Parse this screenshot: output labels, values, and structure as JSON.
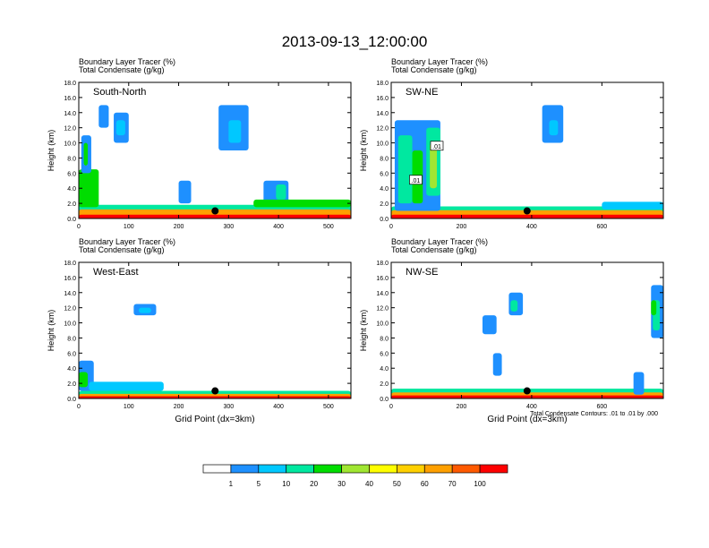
{
  "title": "2013-09-13_12:00:00",
  "footnote": "Total Condensate Contours: .01 to .01 by .000",
  "chart_data": [
    {
      "type": "heatmap",
      "panel": "South-North",
      "label": "South-North",
      "subtitle_line1": "Boundary Layer Tracer   (%)",
      "subtitle_line2": "Total Condensate   (g/kg)",
      "ylabel": "Height (km)",
      "xlabel": "",
      "xlim": [
        0,
        545
      ],
      "ylim": [
        0,
        18
      ],
      "xticks": [
        "0",
        "100",
        "200",
        "300",
        "400",
        "500"
      ],
      "yticks": [
        "0.0",
        "2.0",
        "4.0",
        "6.0",
        "8.0",
        "10.0",
        "12.0",
        "14.0",
        "16.0",
        "18.0"
      ],
      "marker": {
        "x": 273,
        "y": 1.0
      },
      "contour_labels": []
    },
    {
      "type": "heatmap",
      "panel": "SW-NE",
      "label": "SW-NE",
      "subtitle_line1": "Boundary Layer Tracer   (%)",
      "subtitle_line2": "Total Condensate   (g/kg)",
      "ylabel": "Height (km)",
      "xlabel": "",
      "xlim": [
        0,
        775
      ],
      "ylim": [
        0,
        18
      ],
      "xticks": [
        "0",
        "200",
        "400",
        "600"
      ],
      "yticks": [
        "0.0",
        "2.0",
        "4.0",
        "6.0",
        "8.0",
        "10.0",
        "12.0",
        "14.0",
        "16.0",
        "18.0"
      ],
      "marker": {
        "x": 387,
        "y": 1.0
      },
      "contour_labels": [
        {
          "text": ".01",
          "x": 130,
          "y": 9.5
        },
        {
          "text": ".01",
          "x": 70,
          "y": 5.0
        }
      ]
    },
    {
      "type": "heatmap",
      "panel": "West-East",
      "label": "West-East",
      "subtitle_line1": "Boundary Layer Tracer   (%)",
      "subtitle_line2": "Total Condensate   (g/kg)",
      "ylabel": "Height (km)",
      "xlabel": "Grid Point (dx=3km)",
      "xlim": [
        0,
        545
      ],
      "ylim": [
        0,
        18
      ],
      "xticks": [
        "0",
        "100",
        "200",
        "300",
        "400",
        "500"
      ],
      "yticks": [
        "0.0",
        "2.0",
        "4.0",
        "6.0",
        "8.0",
        "10.0",
        "12.0",
        "14.0",
        "16.0",
        "18.0"
      ],
      "marker": {
        "x": 273,
        "y": 1.0
      },
      "contour_labels": []
    },
    {
      "type": "heatmap",
      "panel": "NW-SE",
      "label": "NW-SE",
      "subtitle_line1": "Boundary Layer Tracer   (%)",
      "subtitle_line2": "Total Condensate   (g/kg)",
      "ylabel": "Height (km)",
      "xlabel": "Grid Point (dx=3km)",
      "xlim": [
        0,
        775
      ],
      "ylim": [
        0,
        18
      ],
      "xticks": [
        "0",
        "200",
        "400",
        "600"
      ],
      "yticks": [
        "0.0",
        "2.0",
        "4.0",
        "6.0",
        "8.0",
        "10.0",
        "12.0",
        "14.0",
        "16.0",
        "18.0"
      ],
      "marker": {
        "x": 387,
        "y": 1.0
      },
      "contour_labels": []
    }
  ],
  "colorbar": {
    "labels": [
      "1",
      "5",
      "10",
      "20",
      "30",
      "40",
      "50",
      "60",
      "70",
      "100"
    ],
    "colors": [
      "#ffffff",
      "#1e90ff",
      "#00c8ff",
      "#00e8a0",
      "#00dd00",
      "#a0e632",
      "#ffff00",
      "#ffd000",
      "#ffa000",
      "#ff5a00",
      "#ff0000"
    ]
  }
}
